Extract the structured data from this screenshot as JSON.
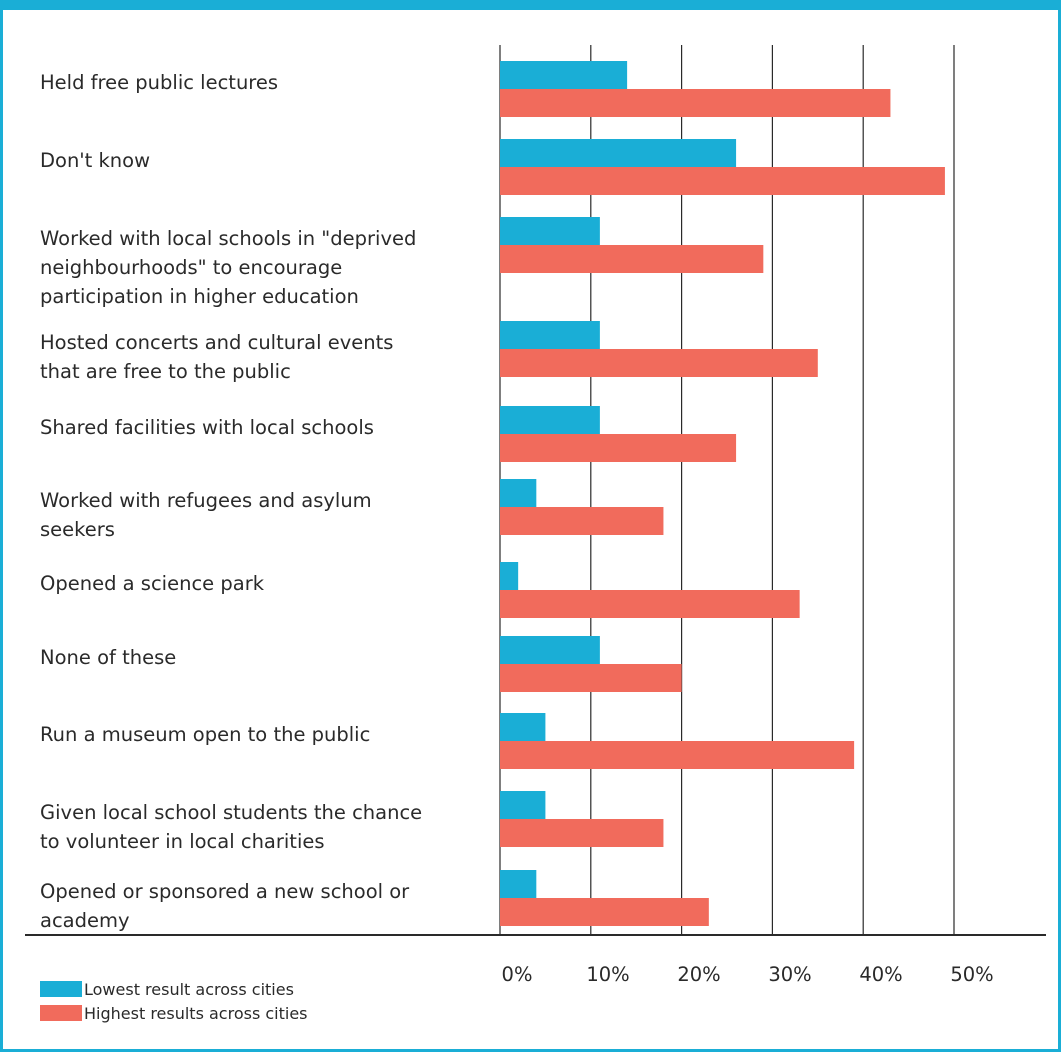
{
  "colors": {
    "lowest": "#1aaed6",
    "highest": "#f16b5c",
    "frame": "#1aaed6"
  },
  "legend": {
    "lowest_label": "Lowest result across cities",
    "highest_label": "Highest results across cities"
  },
  "chart_data": {
    "type": "bar",
    "orientation": "horizontal",
    "xlim": [
      0,
      50
    ],
    "xticks": [
      "0%",
      "10%",
      "20%",
      "30%",
      "40%",
      "50%"
    ],
    "grid": true,
    "legend_position": "bottom-left",
    "categories": [
      [
        "Held free public lectures"
      ],
      [
        "Don't know"
      ],
      [
        "Worked with local schools in \"deprived",
        "neighbourhoods\" to encourage",
        "participation in higher education"
      ],
      [
        "Hosted concerts and cultural events",
        "that are free to the public"
      ],
      [
        "Shared facilities with local schools"
      ],
      [
        "Worked with refugees and asylum",
        "seekers"
      ],
      [
        "Opened a science park"
      ],
      [
        "None of these"
      ],
      [
        "Run a museum open to the public"
      ],
      [
        "Given local school students the chance",
        "to volunteer in local charities"
      ],
      [
        "Opened or sponsored a new school or",
        "academy"
      ]
    ],
    "series": [
      {
        "name": "Lowest result across cities",
        "values": [
          14,
          26,
          11,
          11,
          11,
          4,
          2,
          11,
          5,
          5,
          4
        ]
      },
      {
        "name": "Highest results across cities",
        "values": [
          43,
          49,
          29,
          35,
          26,
          18,
          33,
          20,
          39,
          18,
          23
        ]
      }
    ]
  }
}
